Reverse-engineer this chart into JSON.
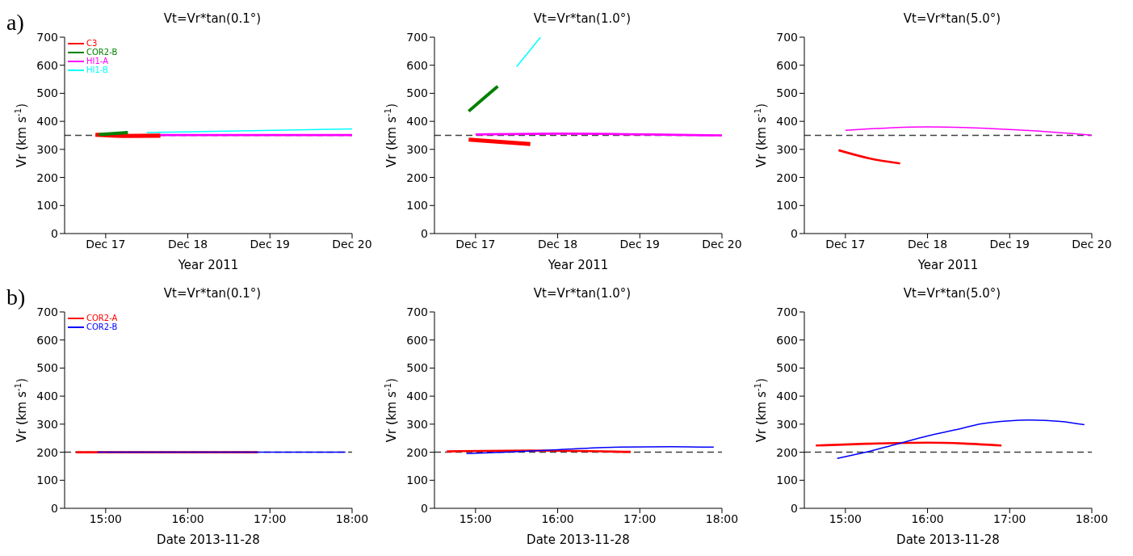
{
  "chart_data": [
    {
      "type": "line",
      "title": "Vt=Vr*tan(0.1°)",
      "xlabel": "Year 2011",
      "ylabel": "Vr (km s$^{-1}$)",
      "annotations": [
        "a)"
      ],
      "legend": "top left",
      "xlim": [
        "2011-12-16T12:00",
        "2011-12-20"
      ],
      "xticks": [
        {
          "value": "2011-12-17",
          "label": "Dec 17"
        },
        {
          "value": "2011-12-18",
          "label": "Dec 18"
        },
        {
          "value": "2011-12-19",
          "label": "Dec 19"
        },
        {
          "value": "2011-12-20",
          "label": "Dec 20"
        }
      ],
      "ylim": [
        0,
        700
      ],
      "yticks": [
        0,
        100,
        200,
        300,
        400,
        500,
        600,
        700
      ],
      "ref_lines": [
        {
          "axis": "y",
          "value": 350,
          "color": "#404040",
          "line_style": "dashed"
        }
      ],
      "series": [
        {
          "name": "C3",
          "color": "#ff0000",
          "x": [
            "2011-12-16T21:00",
            "2011-12-17T05:00",
            "2011-12-17T16:00"
          ],
          "values": [
            352,
            348,
            349
          ]
        },
        {
          "name": "COR2-B",
          "color": "#008000",
          "x": [
            "2011-12-16T22:00",
            "2011-12-17T06:30"
          ],
          "values": [
            353,
            360
          ]
        },
        {
          "name": "HI1-A",
          "color": "#ff00ff",
          "x": [
            "2011-12-17T16:00",
            "2011-12-20"
          ],
          "values": [
            351,
            351
          ]
        },
        {
          "name": "HI1-B",
          "color": "#00ffff",
          "x": [
            "2011-12-17T12:00",
            "2011-12-20"
          ],
          "values": [
            360,
            373
          ]
        }
      ]
    },
    {
      "type": "line",
      "title": "Vt=Vr*tan(1.0°)",
      "xlabel": "Year 2011",
      "ylabel": "Vr (km s$^{-1}$)",
      "xlim": [
        "2011-12-16T12:00",
        "2011-12-20"
      ],
      "xticks": [
        {
          "value": "2011-12-17",
          "label": "Dec 17"
        },
        {
          "value": "2011-12-18",
          "label": "Dec 18"
        },
        {
          "value": "2011-12-19",
          "label": "Dec 19"
        },
        {
          "value": "2011-12-20",
          "label": "Dec 20"
        }
      ],
      "ylim": [
        0,
        700
      ],
      "yticks": [
        0,
        100,
        200,
        300,
        400,
        500,
        600,
        700
      ],
      "ref_lines": [
        {
          "axis": "y",
          "value": 350,
          "color": "#404040",
          "line_style": "dashed"
        }
      ],
      "series": [
        {
          "color": "#ff0000",
          "x": [
            "2011-12-16T22:00",
            "2011-12-17T16:00"
          ],
          "values": [
            335,
            319
          ]
        },
        {
          "color": "#008000",
          "x": [
            "2011-12-16T22:00",
            "2011-12-17T02:00",
            "2011-12-17T06:30"
          ],
          "values": [
            436,
            478,
            525
          ]
        },
        {
          "color": "#ff00ff",
          "x": [
            "2011-12-17",
            "2011-12-18",
            "2011-12-20"
          ],
          "values": [
            353,
            356,
            350
          ]
        },
        {
          "color": "#00ffff",
          "x": [
            "2011-12-17T12:00",
            "2011-12-17T19:00"
          ],
          "values": [
            595,
            700
          ]
        }
      ]
    },
    {
      "type": "line",
      "title": "Vt=Vr*tan(5.0°)",
      "xlabel": "Year 2011",
      "ylabel": "Vr (km s$^{-1}$)",
      "xlim": [
        "2011-12-16T12:00",
        "2011-12-20"
      ],
      "xticks": [
        {
          "value": "2011-12-17",
          "label": "Dec 17"
        },
        {
          "value": "2011-12-18",
          "label": "Dec 18"
        },
        {
          "value": "2011-12-19",
          "label": "Dec 19"
        },
        {
          "value": "2011-12-20",
          "label": "Dec 20"
        }
      ],
      "ylim": [
        0,
        700
      ],
      "yticks": [
        0,
        100,
        200,
        300,
        400,
        500,
        600,
        700
      ],
      "ref_lines": [
        {
          "axis": "y",
          "value": 350,
          "color": "#404040",
          "line_style": "dashed"
        }
      ],
      "series": [
        {
          "color": "#ff0000",
          "x": [
            "2011-12-16T22:00",
            "2011-12-17T07:00",
            "2011-12-17T16:00"
          ],
          "values": [
            297,
            268,
            250
          ]
        },
        {
          "color": "#ff00ff",
          "x": [
            "2011-12-17",
            "2011-12-18",
            "2011-12-19",
            "2011-12-20"
          ],
          "values": [
            368,
            380,
            371,
            351
          ]
        }
      ]
    },
    {
      "type": "line",
      "title": "Vt=Vr*tan(0.1°)",
      "xlabel": "Date 2013-11-28",
      "ylabel": "Vr (km s$^{-1}$)",
      "annotations": [
        "b)"
      ],
      "legend": "top left",
      "xlim": [
        14.5,
        18
      ],
      "xticks": [
        {
          "value": 15,
          "label": "15:00"
        },
        {
          "value": 16,
          "label": "16:00"
        },
        {
          "value": 17,
          "label": "17:00"
        },
        {
          "value": 18,
          "label": "18:00"
        }
      ],
      "ylim": [
        0,
        700
      ],
      "yticks": [
        0,
        100,
        200,
        300,
        400,
        500,
        600,
        700
      ],
      "ref_lines": [
        {
          "axis": "y",
          "value": 200,
          "color": "#404040",
          "line_style": "dashed"
        }
      ],
      "series": [
        {
          "name": "COR2-A",
          "color": "#ff0000",
          "x": [
            14.64,
            16.85
          ],
          "values": [
            200,
            200
          ]
        },
        {
          "name": "COR2-B",
          "color": "#0000ff",
          "x": [
            14.9,
            17.92
          ],
          "values": [
            200,
            200
          ]
        }
      ]
    },
    {
      "type": "line",
      "title": "Vt=Vr*tan(1.0°)",
      "xlabel": "Date 2013-11-28",
      "ylabel": "Vr (km s$^{-1}$)",
      "xlim": [
        14.5,
        18
      ],
      "xticks": [
        {
          "value": 15,
          "label": "15:00"
        },
        {
          "value": 16,
          "label": "16:00"
        },
        {
          "value": 17,
          "label": "17:00"
        },
        {
          "value": 18,
          "label": "18:00"
        }
      ],
      "ylim": [
        0,
        700
      ],
      "yticks": [
        0,
        100,
        200,
        300,
        400,
        500,
        600,
        700
      ],
      "ref_lines": [
        {
          "axis": "y",
          "value": 200,
          "color": "#404040",
          "line_style": "dashed"
        }
      ],
      "series": [
        {
          "color": "#ff0000",
          "x": [
            14.65,
            15.64,
            16.89
          ],
          "values": [
            203,
            206,
            201
          ]
        },
        {
          "color": "#0000ff",
          "x": [
            14.89,
            15.44,
            16,
            16.74,
            17.39,
            17.9
          ],
          "values": [
            195,
            201,
            209,
            218,
            220,
            218
          ]
        }
      ]
    },
    {
      "type": "line",
      "title": "Vt=Vr*tan(5.0°)",
      "xlabel": "Date 2013-11-28",
      "ylabel": "Vr (km s$^{-1}$)",
      "xlim": [
        14.5,
        18
      ],
      "xticks": [
        {
          "value": 15,
          "label": "15:00"
        },
        {
          "value": 16,
          "label": "16:00"
        },
        {
          "value": 17,
          "label": "17:00"
        },
        {
          "value": 18,
          "label": "18:00"
        }
      ],
      "ylim": [
        0,
        700
      ],
      "yticks": [
        0,
        100,
        200,
        300,
        400,
        500,
        600,
        700
      ],
      "ref_lines": [
        {
          "axis": "y",
          "value": 200,
          "color": "#404040",
          "line_style": "dashed"
        }
      ],
      "series": [
        {
          "color": "#ff0000",
          "x": [
            14.64,
            15.25,
            16,
            16.45,
            16.9
          ],
          "values": [
            224,
            230,
            234,
            231,
            224
          ]
        },
        {
          "color": "#0000ff",
          "x": [
            14.9,
            15.25,
            15.6,
            16,
            16.39,
            16.65,
            17,
            17.26,
            17.62,
            17.91
          ],
          "values": [
            178,
            200,
            227,
            258,
            283,
            301,
            312,
            315,
            310,
            298
          ]
        }
      ]
    }
  ]
}
